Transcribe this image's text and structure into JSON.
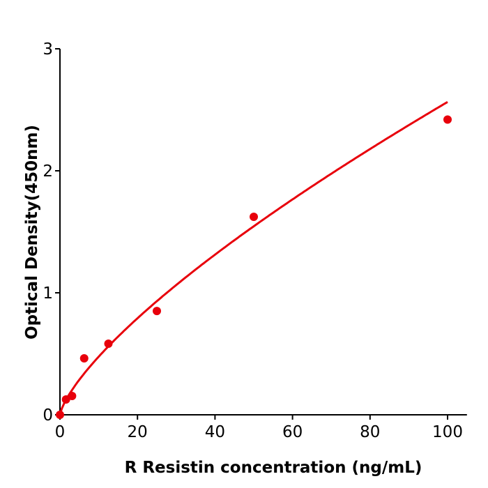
{
  "chart_data": {
    "type": "scatter",
    "title": "",
    "xlabel": "R  Resistin concentration (ng/mL)",
    "ylabel": "Optical Density(450nm)",
    "xlim": [
      0,
      105
    ],
    "ylim": [
      0,
      3
    ],
    "xticks": [
      "0",
      "20",
      "40",
      "60",
      "80",
      "100"
    ],
    "yticks": [
      "0",
      "1",
      "2",
      "3"
    ],
    "grid": false,
    "color": "#e8000b",
    "points": {
      "x": [
        0,
        1.56,
        3.125,
        6.25,
        12.5,
        25,
        50,
        100
      ],
      "y": [
        0.0,
        0.126,
        0.154,
        0.463,
        0.583,
        0.851,
        1.623,
        2.42
      ]
    },
    "fit_curve": "power"
  }
}
